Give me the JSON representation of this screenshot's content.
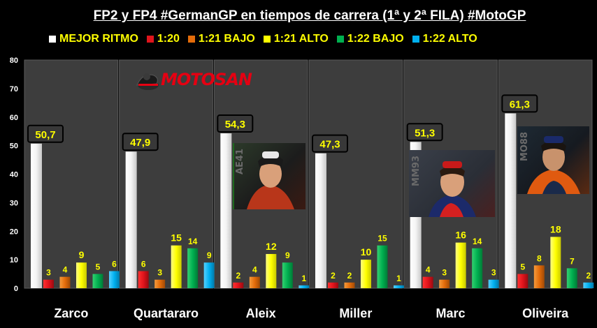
{
  "title": "FP2 y FP4 #GermanGP en tiempos de carrera (1ª y 2ª FILA) #MotoGP",
  "legend": [
    {
      "label": "MEJOR RITMO",
      "color": "#ffffff"
    },
    {
      "label": "1:20",
      "color": "#e0141c"
    },
    {
      "label": "1:21 BAJO",
      "color": "#e46c0a"
    },
    {
      "label": "1:21 ALTO",
      "color": "#ffff00"
    },
    {
      "label": "1:22 BAJO",
      "color": "#00b050"
    },
    {
      "label": "1:22 ALTO",
      "color": "#00b0f0"
    }
  ],
  "logo": {
    "text": "MOTOSAN"
  },
  "rider_numbers": {
    "aleix": "AE41",
    "marc": "MM93",
    "oliveira": "MO88"
  },
  "chart_data": {
    "type": "bar",
    "title": "FP2 y FP4 #GermanGP en tiempos de carrera (1ª y 2ª FILA) #MotoGP",
    "categories": [
      "Zarco",
      "Quartararo",
      "Aleix",
      "Miller",
      "Marc",
      "Oliveira"
    ],
    "best_pace_labels": [
      "50,7",
      "47,9",
      "54,3",
      "47,3",
      "51,3",
      "61,3"
    ],
    "series": [
      {
        "name": "MEJOR RITMO",
        "color": "#ffffff",
        "values": [
          50.7,
          47.9,
          54.3,
          47.3,
          51.3,
          61.3
        ]
      },
      {
        "name": "1:20",
        "color": "#e0141c",
        "values": [
          3,
          6,
          2,
          2,
          4,
          5
        ]
      },
      {
        "name": "1:21 BAJO",
        "color": "#e46c0a",
        "values": [
          4,
          3,
          4,
          2,
          3,
          8
        ]
      },
      {
        "name": "1:21 ALTO",
        "color": "#ffff00",
        "values": [
          9,
          15,
          12,
          10,
          16,
          18
        ]
      },
      {
        "name": "1:22 BAJO",
        "color": "#00b050",
        "values": [
          5,
          14,
          9,
          15,
          14,
          7
        ]
      },
      {
        "name": "1:22 ALTO",
        "color": "#00b0f0",
        "values": [
          6,
          9,
          1,
          1,
          3,
          2
        ]
      }
    ],
    "ylim": [
      0,
      80
    ],
    "yticks": [
      0,
      10,
      20,
      30,
      40,
      50,
      60,
      70,
      80
    ],
    "xlabel": "",
    "ylabel": "",
    "grid": false,
    "legend_position": "top"
  }
}
